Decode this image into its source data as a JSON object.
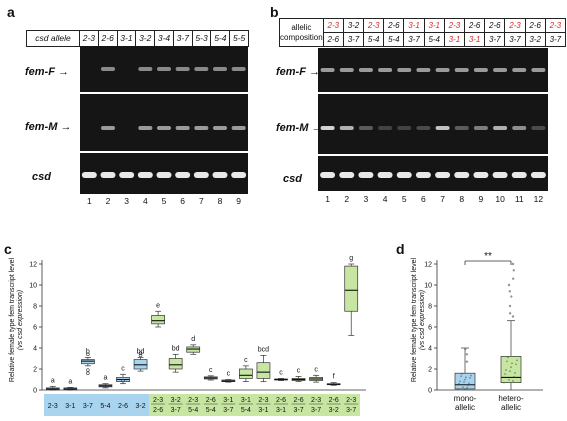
{
  "panel_a": {
    "letter": "a",
    "allele_header": "csd allele",
    "alleles": [
      "2-3",
      "2-6",
      "3-1",
      "3-2",
      "3-4",
      "3-7",
      "5-3",
      "5-4",
      "5-5"
    ],
    "row_labels": [
      "fem-F",
      "fem-M",
      "csd"
    ],
    "lanes": [
      "1",
      "2",
      "3",
      "4",
      "5",
      "6",
      "7",
      "8",
      "9"
    ],
    "femF_bands": [
      0,
      1,
      0,
      1,
      1,
      1,
      1,
      1,
      1
    ],
    "femM_bands": [
      0,
      1,
      0,
      1,
      1,
      1,
      1,
      1,
      1
    ]
  },
  "panel_b": {
    "letter": "b",
    "header_line1": "allelic",
    "header_line2": "composition",
    "top": [
      "2-3",
      "3-2",
      "2-3",
      "2-6",
      "3-1",
      "3-1",
      "2-3",
      "2-6",
      "2-6",
      "2-3",
      "2-6",
      "2-3"
    ],
    "top_red": [
      true,
      false,
      true,
      false,
      true,
      true,
      true,
      false,
      false,
      true,
      false,
      true
    ],
    "bottom": [
      "2-6",
      "3-7",
      "5-4",
      "5-4",
      "3-7",
      "5-4",
      "3-1",
      "3-1",
      "3-7",
      "3-7",
      "3-2",
      "3-7"
    ],
    "bottom_red": [
      false,
      false,
      false,
      false,
      false,
      false,
      true,
      true,
      false,
      false,
      false,
      false
    ],
    "row_labels": [
      "fem-F",
      "fem-M",
      "csd"
    ],
    "lanes": [
      "1",
      "2",
      "3",
      "4",
      "5",
      "6",
      "7",
      "8",
      "9",
      "10",
      "11",
      "12"
    ],
    "femM_intensity": [
      1,
      0.8,
      0.3,
      0.15,
      0.15,
      0.2,
      0.9,
      0.3,
      0.5,
      0.8,
      0.6,
      0.2
    ]
  },
  "panel_c": {
    "letter": "c",
    "ylabel_line1": "Relative female type fem transcript level",
    "ylabel_line2": "(vs csd expression)",
    "yticks": [
      "0",
      "2",
      "4",
      "6",
      "8",
      "10",
      "12"
    ],
    "mono_labels": [
      "2-3",
      "3-1",
      "3-7",
      "5-4",
      "2-6",
      "3-2"
    ],
    "hetero_top": [
      "2-3",
      "3-2",
      "2-3",
      "2-6",
      "3-1",
      "3-1",
      "2-3",
      "2-6",
      "2-6",
      "2-3",
      "2-6",
      "2-3"
    ],
    "hetero_bottom": [
      "2-6",
      "3-7",
      "5-4",
      "5-4",
      "3-7",
      "5-4",
      "3-1",
      "3-1",
      "3-7",
      "3-7",
      "3-2",
      "3-7"
    ],
    "mono_color": "#a9d4ef",
    "hetero_color": "#c7e6a1"
  },
  "panel_d": {
    "letter": "d",
    "ylabel_line1": "Relative female type fem transcript level",
    "ylabel_line2": "(vs csd expression)",
    "yticks": [
      "0",
      "2",
      "4",
      "6",
      "8",
      "10",
      "12"
    ],
    "significance": "**",
    "cat1_line1": "mono-",
    "cat1_line2": "allelic",
    "cat2_line1": "hetero-",
    "cat2_line2": "allelic"
  },
  "chart_data": [
    {
      "type": "box",
      "id": "panel_c",
      "ylim": [
        0,
        12
      ],
      "categories": [
        "2-3",
        "3-1",
        "3-7",
        "5-4",
        "2-6",
        "3-2",
        "2-3/2-6",
        "3-2/3-7",
        "2-3/5-4",
        "2-6/5-4",
        "3-1/3-7",
        "3-1/5-4",
        "2-3/3-1",
        "2-6/3-1",
        "2-6/3-7",
        "2-3/3-7",
        "2-6/3-2",
        "2-3/3-7"
      ],
      "group": [
        "mono",
        "mono",
        "mono",
        "mono",
        "mono",
        "mono",
        "hetero",
        "hetero",
        "hetero",
        "hetero",
        "hetero",
        "hetero",
        "hetero",
        "hetero",
        "hetero",
        "hetero",
        "hetero",
        "hetero"
      ],
      "letters": [
        "a",
        "a",
        "b",
        "a",
        "c",
        "bd",
        "e",
        "bd",
        "d",
        "c",
        "c",
        "c",
        "bcd",
        "c",
        "c",
        "c",
        "f",
        "g"
      ],
      "q1": [
        0.05,
        0.05,
        2.5,
        0.3,
        0.8,
        2.0,
        6.3,
        2.0,
        3.6,
        1.05,
        0.8,
        1.1,
        1.1,
        0.95,
        0.9,
        0.9,
        0.5,
        7.5
      ],
      "median": [
        0.1,
        0.1,
        2.75,
        0.4,
        1.0,
        2.4,
        6.6,
        2.4,
        3.9,
        1.15,
        0.85,
        1.4,
        1.7,
        1.0,
        1.0,
        1.05,
        0.55,
        9.5
      ],
      "q3": [
        0.2,
        0.2,
        2.9,
        0.5,
        1.2,
        2.9,
        7.1,
        3.0,
        4.1,
        1.25,
        0.95,
        2.0,
        2.6,
        1.05,
        1.1,
        1.2,
        0.6,
        11.8
      ],
      "wlow": [
        0,
        0,
        2.3,
        0.2,
        0.6,
        1.8,
        6.0,
        1.7,
        3.4,
        0.95,
        0.75,
        0.8,
        0.8,
        0.9,
        0.8,
        0.75,
        0.45,
        5.2
      ],
      "whigh": [
        0.35,
        0.25,
        3.1,
        0.6,
        1.5,
        3.1,
        7.5,
        3.4,
        4.3,
        1.35,
        1.0,
        2.3,
        3.3,
        1.1,
        1.3,
        1.4,
        0.7,
        12.0
      ],
      "outliers": [
        [],
        [],
        [
          1.6,
          1.9,
          3.4
        ],
        [],
        [
          0.9
        ],
        [
          3.3,
          3.5
        ],
        [],
        [],
        [],
        [],
        [],
        [],
        [],
        [],
        [],
        [],
        [],
        []
      ]
    },
    {
      "type": "box",
      "id": "panel_d",
      "ylim": [
        0,
        12
      ],
      "categories": [
        "mono-allelic",
        "hetero-allelic"
      ],
      "q1": [
        0.1,
        0.7
      ],
      "median": [
        0.5,
        1.2
      ],
      "q3": [
        1.6,
        3.2
      ],
      "wlow": [
        0,
        0
      ],
      "whigh": [
        4.0,
        6.6
      ],
      "outliers": [
        [
          2.7,
          3.4,
          3.9
        ],
        [
          7.0,
          7.3,
          8.0,
          8.9,
          9.4,
          10.0,
          10.6,
          11.4,
          12.0
        ]
      ]
    }
  ]
}
